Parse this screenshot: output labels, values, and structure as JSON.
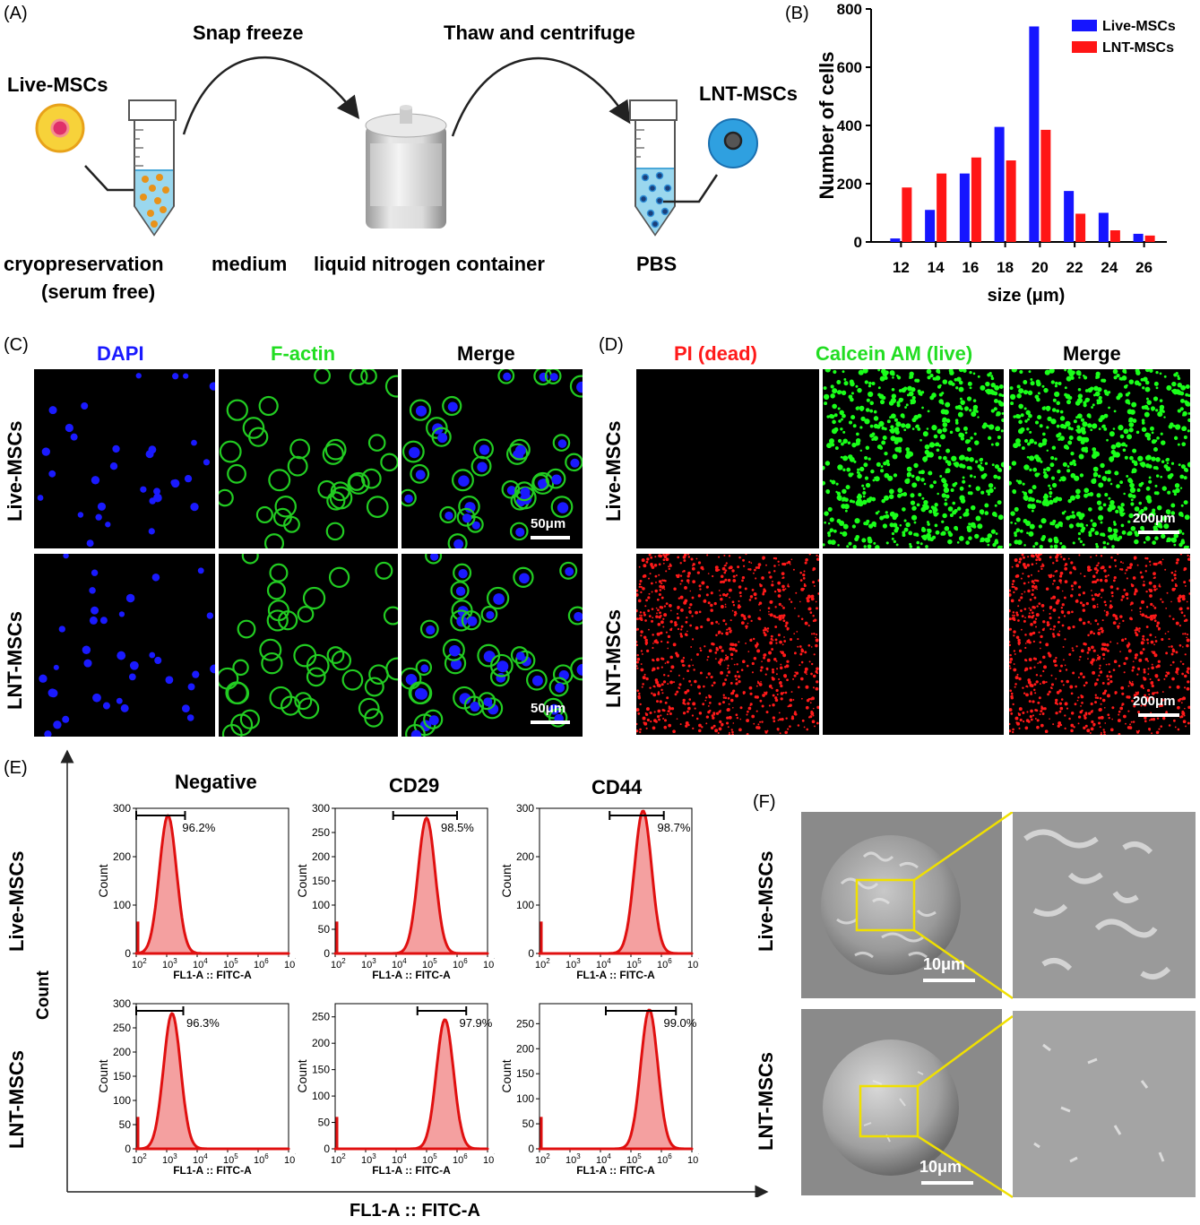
{
  "panelA": {
    "label": "(A)",
    "snap_freeze": "Snap freeze",
    "thaw": "Thaw and centrifuge",
    "live_mscs": "Live-MSCs",
    "lnt_mscs": "LNT-MSCs",
    "cryo_line1": "cryopreservation",
    "cryo_line2": "(serum free)",
    "medium": "medium",
    "ln_container": "liquid nitrogen container",
    "pbs": "PBS"
  },
  "panelB": {
    "label": "(B)"
  },
  "panelC": {
    "label": "(C)",
    "col1": "DAPI",
    "col2": "F-actin",
    "col3": "Merge",
    "row1": "Live-MSCs",
    "row2": "LNT-MSCs",
    "scale": "50μm",
    "colors": {
      "dapi": "#1a1aff",
      "factin": "#22cc22"
    }
  },
  "panelD": {
    "label": "(D)",
    "col1": "PI (dead)",
    "col2": "Calcein AM (live)",
    "col3": "Merge",
    "row1": "Live-MSCs",
    "row2": "LNT-MSCs",
    "scale": "200μm",
    "colors": {
      "pi": "#ff1a1a",
      "calcein": "#1aff1a"
    }
  },
  "panelE": {
    "label": "(E)",
    "col1": "Negative",
    "col2": "CD29",
    "col3": "CD44",
    "row1": "Live-MSCs",
    "row2": "LNT-MSCs",
    "y_axis": "Count",
    "x_axis": "FL1-A :: FITC-A",
    "hist_xlabel": "FL1-A :: FITC-A",
    "hist_ylabel": "Count"
  },
  "panelF": {
    "label": "(F)",
    "row1": "Live-MSCs",
    "row2": "LNT-MSCs",
    "scale": "10μm",
    "colors": {
      "highlight": "#f0e000"
    }
  },
  "chart_data": [
    {
      "type": "bar",
      "xlabel": "size (μm)",
      "ylabel": "Number of cells",
      "categories": [
        "12",
        "14",
        "16",
        "18",
        "20",
        "22",
        "24",
        "26"
      ],
      "ylim": [
        0,
        800
      ],
      "yticks": [
        0,
        200,
        400,
        600,
        800
      ],
      "legend_position": "top-right",
      "series": [
        {
          "name": "Live-MSCs",
          "color": "#1515ff",
          "values": [
            12,
            110,
            235,
            395,
            740,
            175,
            100,
            28
          ]
        },
        {
          "name": "LNT-MSCs",
          "color": "#ff1515",
          "values": [
            187,
            235,
            290,
            280,
            385,
            97,
            40,
            22
          ]
        }
      ]
    },
    {
      "type": "area",
      "panel": "Live-MSCs Negative",
      "xlabel": "FL1-A :: FITC-A",
      "ylabel": "Count",
      "xscale": "log",
      "xlim": [
        100,
        10000000
      ],
      "ylim": [
        0,
        300
      ],
      "yticks": [
        0,
        100,
        200,
        300
      ],
      "peak": 1100,
      "peak_count": 285,
      "gate_percent": "96.2%",
      "gate_range": [
        100,
        4000
      ]
    },
    {
      "type": "area",
      "panel": "Live-MSCs CD29",
      "xlabel": "FL1-A :: FITC-A",
      "ylabel": "Count",
      "xscale": "log",
      "xlim": [
        100,
        10000000
      ],
      "ylim": [
        0,
        300
      ],
      "yticks": [
        0,
        50,
        100,
        150,
        200,
        250,
        300
      ],
      "peak": 100000,
      "peak_count": 280,
      "gate_percent": "98.5%",
      "gate_range": [
        8000,
        1000000
      ]
    },
    {
      "type": "area",
      "panel": "Live-MSCs CD44",
      "xlabel": "FL1-A :: FITC-A",
      "ylabel": "Count",
      "xscale": "log",
      "xlim": [
        100,
        10000000
      ],
      "ylim": [
        0,
        300
      ],
      "yticks": [
        0,
        100,
        200,
        300
      ],
      "peak": 250000,
      "peak_count": 295,
      "gate_percent": "98.7%",
      "gate_range": [
        20000,
        1200000
      ]
    },
    {
      "type": "area",
      "panel": "LNT-MSCs Negative",
      "xlabel": "FL1-A :: FITC-A",
      "ylabel": "Count",
      "xscale": "log",
      "xlim": [
        100,
        10000000
      ],
      "ylim": [
        0,
        300
      ],
      "yticks": [
        0,
        50,
        100,
        150,
        200,
        250,
        300
      ],
      "peak": 1500,
      "peak_count": 280,
      "gate_percent": "96.3%",
      "gate_range": [
        100,
        3500
      ]
    },
    {
      "type": "area",
      "panel": "LNT-MSCs CD29",
      "xlabel": "FL1-A :: FITC-A",
      "ylabel": "Count",
      "xscale": "log",
      "xlim": [
        100,
        10000000
      ],
      "ylim": [
        0,
        275
      ],
      "yticks": [
        0,
        50,
        100,
        150,
        200,
        250
      ],
      "peak": 400000,
      "peak_count": 245,
      "gate_percent": "97.9%",
      "gate_range": [
        50000,
        2000000
      ]
    },
    {
      "type": "area",
      "panel": "LNT-MSCs CD44",
      "xlabel": "FL1-A :: FITC-A",
      "ylabel": "Count",
      "xscale": "log",
      "xlim": [
        100,
        10000000
      ],
      "ylim": [
        0,
        290
      ],
      "yticks": [
        0,
        50,
        100,
        150,
        200,
        250
      ],
      "peak": 400000,
      "peak_count": 278,
      "gate_percent": "99.0%",
      "gate_range": [
        15000,
        3000000
      ]
    }
  ]
}
